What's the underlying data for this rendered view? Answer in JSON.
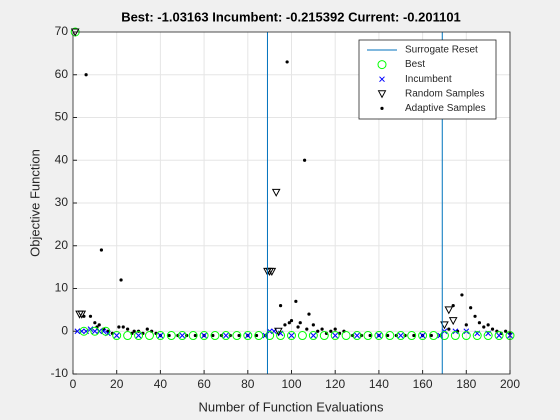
{
  "chart_data": {
    "type": "scatter",
    "title": "Best: -1.03163 Incumbent: -0.215392 Current: -0.201101",
    "x_label": "Number of Function Evaluations",
    "y_label": "Objective Function",
    "xlim": [
      0,
      200
    ],
    "xticks": [
      0,
      20,
      40,
      60,
      80,
      100,
      120,
      140,
      160,
      180,
      200
    ],
    "ylim": [
      -10,
      70
    ],
    "yticks": [
      -10,
      0,
      10,
      20,
      30,
      40,
      50,
      60,
      70
    ],
    "grid": true,
    "legend": "top-right",
    "series": [
      {
        "name": "Surrogate Reset",
        "color": "#0072bd",
        "marker": "vline",
        "x": [
          89,
          169
        ]
      },
      {
        "name": "Best",
        "color": "#00ff00",
        "marker": "circle",
        "x": [
          1,
          5,
          10,
          15,
          20,
          25,
          30,
          35,
          40,
          45,
          50,
          55,
          60,
          65,
          70,
          75,
          80,
          85,
          90,
          95,
          100,
          105,
          110,
          115,
          120,
          125,
          130,
          135,
          140,
          145,
          150,
          155,
          160,
          165,
          170,
          175,
          180,
          185,
          190,
          195,
          200
        ],
        "values": [
          70,
          0,
          0,
          0,
          -1,
          -1,
          -1,
          -1,
          -1,
          -1,
          -1,
          -1,
          -1,
          -1,
          -1,
          -1,
          -1,
          -1,
          -1,
          -1,
          -1,
          -1,
          -1,
          -1,
          -1,
          -1,
          -1,
          -1,
          -1,
          -1,
          -1,
          -1,
          -1,
          -1,
          -1,
          -1,
          -1,
          -1,
          -1,
          -1,
          -1
        ]
      },
      {
        "name": "Incumbent",
        "color": "#0000ff",
        "marker": "x",
        "x": [
          2,
          4,
          6,
          8,
          10,
          12,
          14,
          16,
          20,
          30,
          40,
          50,
          60,
          70,
          80,
          88,
          90,
          92,
          95,
          100,
          110,
          120,
          130,
          140,
          150,
          160,
          168,
          170,
          175,
          180,
          185,
          190,
          195,
          200
        ],
        "values": [
          0,
          0,
          0,
          0.5,
          0,
          0,
          0,
          -0.5,
          -1,
          -1,
          -1,
          -1,
          -1,
          -1,
          -1,
          -1,
          0,
          0,
          -0.5,
          -1,
          -1,
          -1,
          -1,
          -1,
          -1,
          -1,
          -1,
          0,
          0,
          0,
          -0.5,
          -0.5,
          -1,
          -1
        ]
      },
      {
        "name": "Random Samples",
        "color": "#000000",
        "marker": "triangle",
        "x": [
          1,
          3,
          4,
          89,
          90,
          91,
          93,
          94,
          170,
          172,
          174
        ],
        "values": [
          70,
          4,
          4,
          14,
          14,
          14,
          32.5,
          0,
          1.5,
          5,
          2.5
        ]
      },
      {
        "name": "Adaptive Samples",
        "color": "#000000",
        "marker": "dot",
        "x": [
          5,
          6,
          8,
          10,
          11,
          12,
          13,
          14,
          16,
          18,
          21,
          22,
          23,
          25,
          27,
          28,
          30,
          32,
          34,
          36,
          38,
          40,
          44,
          48,
          52,
          56,
          60,
          64,
          68,
          72,
          76,
          80,
          84,
          88,
          95,
          97,
          98,
          99,
          100,
          102,
          103,
          104,
          106,
          107,
          108,
          110,
          112,
          114,
          116,
          118,
          120,
          122,
          124,
          128,
          132,
          136,
          140,
          144,
          148,
          152,
          156,
          160,
          164,
          168,
          172,
          174,
          176,
          178,
          180,
          182,
          184,
          186,
          188,
          190,
          192,
          194,
          196,
          198,
          200
        ],
        "values": [
          3.5,
          60,
          3.5,
          2,
          1,
          1.5,
          19,
          0.5,
          0,
          -0.5,
          1,
          12,
          1,
          0.5,
          -0.5,
          0,
          0,
          -0.5,
          0.5,
          0,
          -0.5,
          -1,
          -1,
          -1,
          -1,
          -1,
          -1,
          -1,
          -1,
          -1,
          -1,
          -1,
          -1,
          -1,
          6,
          1.5,
          63,
          2,
          2.5,
          7,
          1,
          2,
          40,
          0.5,
          4,
          1.5,
          0,
          0.5,
          -0.5,
          0,
          0.5,
          -0.5,
          0,
          -1,
          -1,
          -1,
          -1,
          -1,
          -1,
          -1,
          -1,
          -1,
          -1,
          -1,
          0.5,
          6,
          0,
          8.5,
          1.5,
          5.5,
          3.5,
          2,
          1,
          1.5,
          0.5,
          0,
          -0.5,
          0,
          -0.5
        ]
      }
    ]
  }
}
